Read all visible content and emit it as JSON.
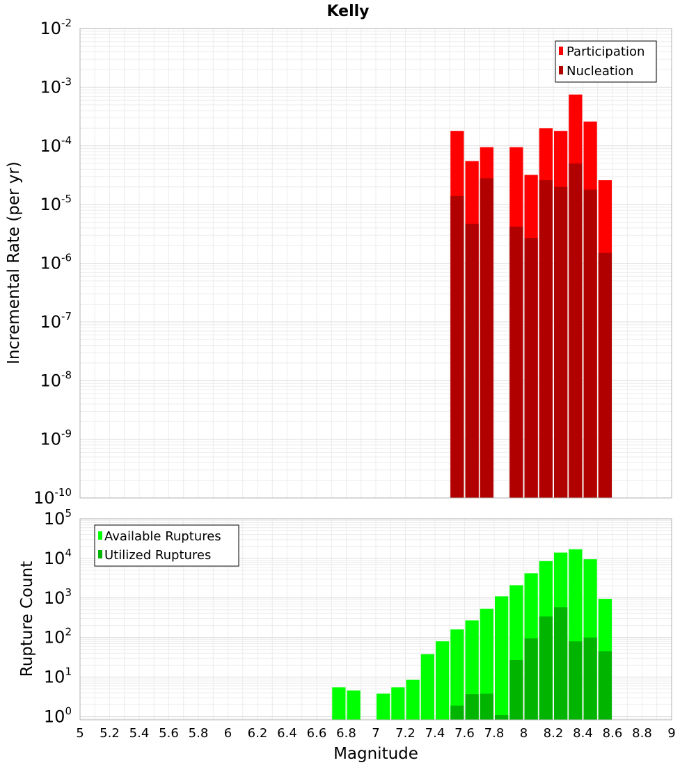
{
  "title": "Kelly",
  "chart_data": [
    {
      "type": "bar",
      "scale": "log",
      "ylabel": "Incremental Rate (per yr)",
      "ylim_exponents": [
        -10,
        -2
      ],
      "ytick_exponents": [
        -10,
        -9,
        -8,
        -7,
        -6,
        -5,
        -4,
        -3,
        -2
      ],
      "xlim": [
        5,
        9
      ],
      "bin_width": 0.1,
      "grid": true,
      "legend_position": "top-right",
      "series": [
        {
          "name": "Participation",
          "color": "#ff0000",
          "points": [
            {
              "x": 7.55,
              "y": 0.00018
            },
            {
              "x": 7.65,
              "y": 5.5e-05
            },
            {
              "x": 7.75,
              "y": 9.5e-05
            },
            {
              "x": 7.95,
              "y": 9.5e-05
            },
            {
              "x": 8.05,
              "y": 3.2e-05
            },
            {
              "x": 8.15,
              "y": 0.0002
            },
            {
              "x": 8.25,
              "y": 0.00018
            },
            {
              "x": 8.35,
              "y": 0.00075
            },
            {
              "x": 8.45,
              "y": 0.00026
            },
            {
              "x": 8.55,
              "y": 2.6e-05
            }
          ]
        },
        {
          "name": "Nucleation",
          "color": "#b00000",
          "points": [
            {
              "x": 7.55,
              "y": 1.4e-05
            },
            {
              "x": 7.65,
              "y": 4.7e-06
            },
            {
              "x": 7.75,
              "y": 2.8e-05
            },
            {
              "x": 7.95,
              "y": 4.2e-06
            },
            {
              "x": 8.05,
              "y": 2.7e-06
            },
            {
              "x": 8.15,
              "y": 2.6e-05
            },
            {
              "x": 8.25,
              "y": 2e-05
            },
            {
              "x": 8.35,
              "y": 5e-05
            },
            {
              "x": 8.45,
              "y": 1.8e-05
            },
            {
              "x": 8.55,
              "y": 1.5e-06
            }
          ]
        }
      ]
    },
    {
      "type": "bar",
      "scale": "log",
      "xlabel": "Magnitude",
      "ylabel": "Rupture Count",
      "ylim_exponents": [
        -0.08,
        5
      ],
      "ytick_exponents": [
        0,
        1,
        2,
        3,
        4,
        5
      ],
      "xlim": [
        5,
        9
      ],
      "xticks": [
        "5",
        "5.2",
        "5.4",
        "5.6",
        "5.8",
        "6",
        "6.2",
        "6.4",
        "6.6",
        "6.8",
        "7",
        "7.2",
        "7.4",
        "7.6",
        "7.8",
        "8",
        "8.2",
        "8.4",
        "8.6",
        "8.8",
        "9"
      ],
      "bin_width": 0.1,
      "grid": true,
      "legend_position": "top-left",
      "series": [
        {
          "name": "Available Ruptures",
          "color": "#00ff00",
          "points": [
            {
              "x": 6.75,
              "y": 5.5
            },
            {
              "x": 6.85,
              "y": 4.6
            },
            {
              "x": 7.05,
              "y": 3.8
            },
            {
              "x": 7.15,
              "y": 5.5
            },
            {
              "x": 7.25,
              "y": 8.5
            },
            {
              "x": 7.35,
              "y": 38
            },
            {
              "x": 7.45,
              "y": 80
            },
            {
              "x": 7.55,
              "y": 160
            },
            {
              "x": 7.65,
              "y": 270
            },
            {
              "x": 7.75,
              "y": 530
            },
            {
              "x": 7.85,
              "y": 1100
            },
            {
              "x": 7.95,
              "y": 2100
            },
            {
              "x": 8.05,
              "y": 4200
            },
            {
              "x": 8.15,
              "y": 8500
            },
            {
              "x": 8.25,
              "y": 14000
            },
            {
              "x": 8.35,
              "y": 17000
            },
            {
              "x": 8.45,
              "y": 9500
            },
            {
              "x": 8.55,
              "y": 950
            }
          ]
        },
        {
          "name": "Utilized Ruptures",
          "color": "#00b400",
          "points": [
            {
              "x": 7.55,
              "y": 1.9
            },
            {
              "x": 7.65,
              "y": 3.7
            },
            {
              "x": 7.75,
              "y": 3.8
            },
            {
              "x": 7.85,
              "y": 1.1
            },
            {
              "x": 7.95,
              "y": 27
            },
            {
              "x": 8.05,
              "y": 95
            },
            {
              "x": 8.15,
              "y": 340
            },
            {
              "x": 8.25,
              "y": 580
            },
            {
              "x": 8.35,
              "y": 80
            },
            {
              "x": 8.45,
              "y": 100
            },
            {
              "x": 8.55,
              "y": 45
            }
          ]
        }
      ]
    }
  ]
}
